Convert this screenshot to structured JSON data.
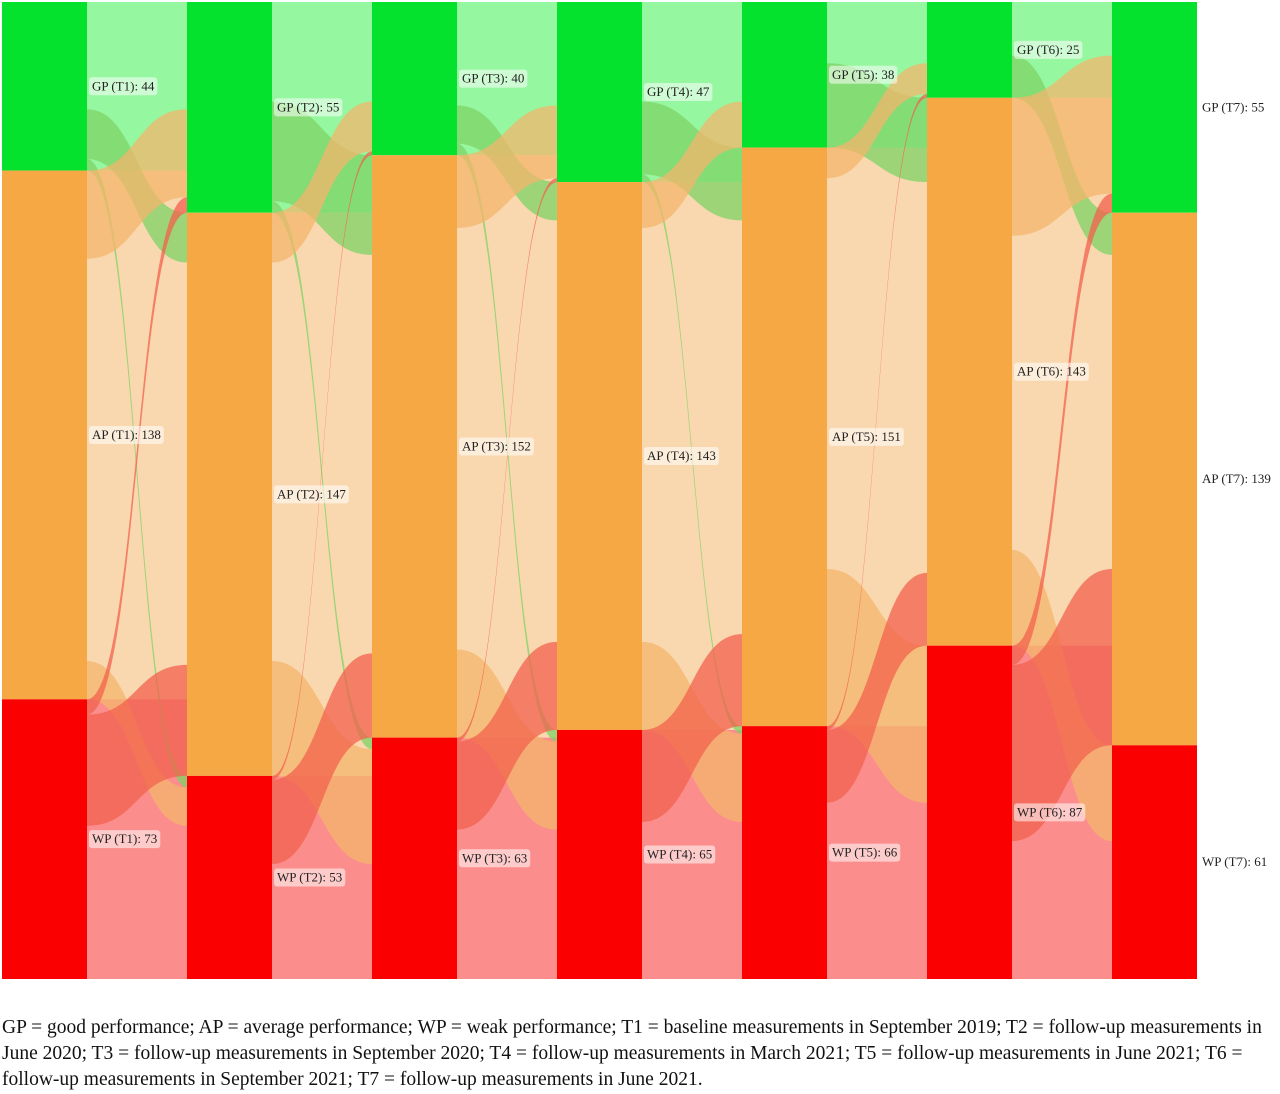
{
  "chart_data": {
    "type": "sankey",
    "categories": [
      "GP",
      "AP",
      "WP"
    ],
    "timepoints": [
      "T1",
      "T2",
      "T3",
      "T4",
      "T5",
      "T6",
      "T7"
    ],
    "colors": {
      "GP": "#05e22d",
      "AP": "#f6a845",
      "WP": "#fb0000",
      "GP_band": "#95f79f",
      "AP_band": "#fad8af",
      "WP_band": "#fc8d8d",
      "GP_flow": "#7fd365",
      "AP_flow": "#f4b56c",
      "WP_flow": "#f2624e"
    },
    "node_totals": [
      {
        "GP": 44,
        "AP": 138,
        "WP": 73
      },
      {
        "GP": 55,
        "AP": 147,
        "WP": 53
      },
      {
        "GP": 40,
        "AP": 152,
        "WP": 63
      },
      {
        "GP": 47,
        "AP": 143,
        "WP": 65
      },
      {
        "GP": 38,
        "AP": 151,
        "WP": 66
      },
      {
        "GP": 25,
        "AP": 143,
        "WP": 87
      },
      {
        "GP": 55,
        "AP": 139,
        "WP": 61
      }
    ],
    "node_labels": [
      {
        "GP": "GP (T1): 44",
        "AP": "AP (T1): 138",
        "WP": "WP (T1): 73"
      },
      {
        "GP": "GP (T2): 55",
        "AP": "AP (T2): 147",
        "WP": "WP (T2): 53"
      },
      {
        "GP": "GP (T3): 40",
        "AP": "AP (T3): 152",
        "WP": "WP (T3): 63"
      },
      {
        "GP": "GP (T4): 47",
        "AP": "AP (T4): 143",
        "WP": "WP (T4): 65"
      },
      {
        "GP": "GP (T5): 38",
        "AP": "AP (T5): 151",
        "WP": "WP (T5): 66"
      },
      {
        "GP": "GP (T6): 25",
        "AP": "AP (T6): 143",
        "WP": "WP (T6): 87"
      },
      {
        "GP": "GP (T7): 55",
        "AP": "AP (T7): 139",
        "WP": "WP (T7): 61"
      }
    ],
    "flows": [
      [
        {
          "from": "GP",
          "to": "GP",
          "value": 28
        },
        {
          "from": "GP",
          "to": "AP",
          "value": 13
        },
        {
          "from": "GP",
          "to": "WP",
          "value": 3
        },
        {
          "from": "AP",
          "to": "GP",
          "value": 23
        },
        {
          "from": "AP",
          "to": "AP",
          "value": 105
        },
        {
          "from": "AP",
          "to": "WP",
          "value": 10
        },
        {
          "from": "WP",
          "to": "GP",
          "value": 4
        },
        {
          "from": "WP",
          "to": "AP",
          "value": 29
        },
        {
          "from": "WP",
          "to": "WP",
          "value": 40
        }
      ],
      [
        {
          "from": "GP",
          "to": "GP",
          "value": 26
        },
        {
          "from": "GP",
          "to": "AP",
          "value": 26
        },
        {
          "from": "GP",
          "to": "WP",
          "value": 3
        },
        {
          "from": "AP",
          "to": "GP",
          "value": 13
        },
        {
          "from": "AP",
          "to": "AP",
          "value": 104
        },
        {
          "from": "AP",
          "to": "WP",
          "value": 30
        },
        {
          "from": "WP",
          "to": "GP",
          "value": 1
        },
        {
          "from": "WP",
          "to": "AP",
          "value": 22
        },
        {
          "from": "WP",
          "to": "WP",
          "value": 30
        }
      ],
      [
        {
          "from": "GP",
          "to": "GP",
          "value": 27
        },
        {
          "from": "GP",
          "to": "AP",
          "value": 10
        },
        {
          "from": "GP",
          "to": "WP",
          "value": 3
        },
        {
          "from": "AP",
          "to": "GP",
          "value": 19
        },
        {
          "from": "AP",
          "to": "AP",
          "value": 110
        },
        {
          "from": "AP",
          "to": "WP",
          "value": 23
        },
        {
          "from": "WP",
          "to": "GP",
          "value": 1
        },
        {
          "from": "WP",
          "to": "AP",
          "value": 23
        },
        {
          "from": "WP",
          "to": "WP",
          "value": 39
        }
      ],
      [
        {
          "from": "GP",
          "to": "GP",
          "value": 26
        },
        {
          "from": "GP",
          "to": "AP",
          "value": 19
        },
        {
          "from": "GP",
          "to": "WP",
          "value": 2
        },
        {
          "from": "AP",
          "to": "GP",
          "value": 12
        },
        {
          "from": "AP",
          "to": "AP",
          "value": 108
        },
        {
          "from": "AP",
          "to": "WP",
          "value": 23
        },
        {
          "from": "WP",
          "to": "GP",
          "value": 0
        },
        {
          "from": "WP",
          "to": "AP",
          "value": 24
        },
        {
          "from": "WP",
          "to": "WP",
          "value": 41
        }
      ],
      [
        {
          "from": "GP",
          "to": "GP",
          "value": 16
        },
        {
          "from": "GP",
          "to": "AP",
          "value": 22
        },
        {
          "from": "GP",
          "to": "WP",
          "value": 0
        },
        {
          "from": "AP",
          "to": "GP",
          "value": 8
        },
        {
          "from": "AP",
          "to": "AP",
          "value": 102
        },
        {
          "from": "AP",
          "to": "WP",
          "value": 41
        },
        {
          "from": "WP",
          "to": "GP",
          "value": 1
        },
        {
          "from": "WP",
          "to": "AP",
          "value": 19
        },
        {
          "from": "WP",
          "to": "WP",
          "value": 46
        }
      ],
      [
        {
          "from": "GP",
          "to": "GP",
          "value": 14
        },
        {
          "from": "GP",
          "to": "AP",
          "value": 11
        },
        {
          "from": "GP",
          "to": "WP",
          "value": 0
        },
        {
          "from": "AP",
          "to": "GP",
          "value": 36
        },
        {
          "from": "AP",
          "to": "AP",
          "value": 82
        },
        {
          "from": "AP",
          "to": "WP",
          "value": 25
        },
        {
          "from": "WP",
          "to": "GP",
          "value": 5
        },
        {
          "from": "WP",
          "to": "AP",
          "value": 46
        },
        {
          "from": "WP",
          "to": "WP",
          "value": 36
        }
      ]
    ]
  },
  "caption": "GP = good performance; AP = average performance; WP = weak performance; T1 = baseline measurements in September 2019; T2 = follow-up measurements in June 2020; T3 = follow-up measurements in September 2020; T4 = follow-up measurements in March 2021; T5 = follow-up measurements in June 2021; T6 = follow-up measurements in September 2021; T7 = follow-up measurements in June 2021."
}
